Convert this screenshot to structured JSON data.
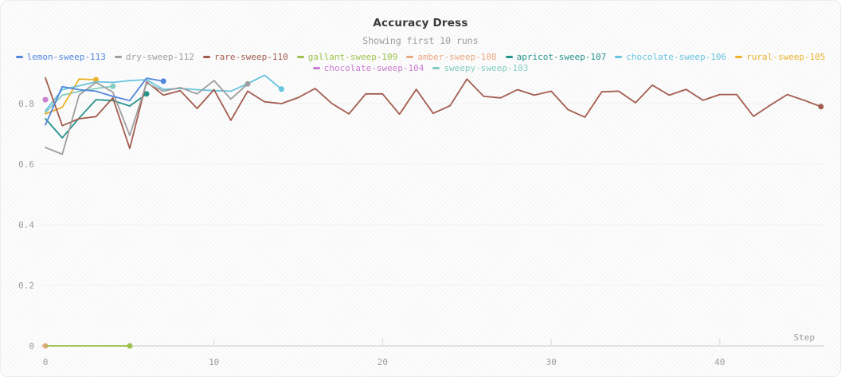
{
  "header": {
    "title": "Accuracy Dress",
    "subtitle": "Showing first 10 runs"
  },
  "axes": {
    "x_title": "Step",
    "x_ticks": [
      {
        "label": "0",
        "value": 0
      },
      {
        "label": "10",
        "value": 10
      },
      {
        "label": "20",
        "value": 20
      },
      {
        "label": "30",
        "value": 30
      },
      {
        "label": "40",
        "value": 40
      }
    ],
    "y_ticks": [
      {
        "label": "0",
        "value": 0
      },
      {
        "label": "0.2",
        "value": 0.2
      },
      {
        "label": "0.4",
        "value": 0.4
      },
      {
        "label": "0.6",
        "value": 0.6
      },
      {
        "label": "0.8",
        "value": 0.8
      }
    ]
  },
  "colors": {
    "axis_text": "#9c9c9c",
    "axis_line": "#e2e2e2",
    "grid_line": "#f1f1f1",
    "title_text": "#3a3a3a"
  },
  "chart_data": {
    "type": "line",
    "title": "Accuracy Dress",
    "subtitle": "Showing first 10 runs",
    "xlabel": "Step",
    "ylabel": "",
    "xlim": [
      0,
      47
    ],
    "ylim": [
      0,
      0.905
    ],
    "grid": "horizontal-faint",
    "legend_position": "top",
    "series": [
      {
        "name": "lemon-sweep-113",
        "color": "#5387DD",
        "points": [
          [
            0,
            0.73
          ],
          [
            1,
            0.856
          ],
          [
            2,
            0.846
          ],
          [
            3,
            0.841
          ],
          [
            4,
            0.824
          ],
          [
            5,
            0.81
          ],
          [
            6,
            0.884
          ],
          [
            7,
            0.874
          ]
        ]
      },
      {
        "name": "dry-sweep-112",
        "color": "#9E9E9E",
        "points": [
          [
            0,
            0.655
          ],
          [
            1,
            0.633
          ],
          [
            2,
            0.828
          ],
          [
            3,
            0.87
          ],
          [
            4,
            0.838
          ],
          [
            5,
            0.695
          ],
          [
            6,
            0.868
          ],
          [
            7,
            0.841
          ],
          [
            8,
            0.853
          ],
          [
            9,
            0.832
          ],
          [
            10,
            0.876
          ],
          [
            11,
            0.815
          ],
          [
            12,
            0.865
          ]
        ]
      },
      {
        "name": "rare-sweep-110",
        "color": "#A35C4E",
        "points": [
          [
            0,
            0.885
          ],
          [
            1,
            0.727
          ],
          [
            2,
            0.75
          ],
          [
            3,
            0.757
          ],
          [
            4,
            0.819
          ],
          [
            5,
            0.652
          ],
          [
            6,
            0.872
          ],
          [
            7,
            0.828
          ],
          [
            8,
            0.843
          ],
          [
            9,
            0.784
          ],
          [
            10,
            0.846
          ],
          [
            11,
            0.745
          ],
          [
            12,
            0.841
          ],
          [
            13,
            0.806
          ],
          [
            14,
            0.8
          ],
          [
            15,
            0.82
          ],
          [
            16,
            0.85
          ],
          [
            17,
            0.8
          ],
          [
            18,
            0.766
          ],
          [
            19,
            0.832
          ],
          [
            20,
            0.832
          ],
          [
            21,
            0.765
          ],
          [
            22,
            0.847
          ],
          [
            23,
            0.768
          ],
          [
            24,
            0.793
          ],
          [
            25,
            0.881
          ],
          [
            26,
            0.824
          ],
          [
            27,
            0.819
          ],
          [
            28,
            0.846
          ],
          [
            29,
            0.828
          ],
          [
            30,
            0.841
          ],
          [
            31,
            0.78
          ],
          [
            32,
            0.755
          ],
          [
            33,
            0.839
          ],
          [
            34,
            0.841
          ],
          [
            35,
            0.803
          ],
          [
            36,
            0.861
          ],
          [
            37,
            0.828
          ],
          [
            38,
            0.847
          ],
          [
            39,
            0.811
          ],
          [
            40,
            0.83
          ],
          [
            41,
            0.83
          ],
          [
            42,
            0.758
          ],
          [
            43,
            0.795
          ],
          [
            44,
            0.83
          ],
          [
            45,
            0.811
          ],
          [
            46,
            0.79
          ]
        ]
      },
      {
        "name": "gallant-sweep-109",
        "color": "#9DC24B",
        "points": [
          [
            0,
            0
          ],
          [
            1,
            0
          ],
          [
            2,
            0
          ],
          [
            3,
            0
          ],
          [
            4,
            0
          ],
          [
            5,
            0
          ]
        ]
      },
      {
        "name": "amber-sweep-108",
        "color": "#EBA782",
        "points": [
          [
            0,
            0
          ]
        ]
      },
      {
        "name": "apricot-sweep-107",
        "color": "#25938A",
        "points": [
          [
            0,
            0.75
          ],
          [
            1,
            0.687
          ],
          [
            2,
            0.752
          ],
          [
            3,
            0.813
          ],
          [
            4,
            0.81
          ],
          [
            5,
            0.792
          ],
          [
            6,
            0.832
          ]
        ]
      },
      {
        "name": "chocolate-sweep-106",
        "color": "#68C3DF",
        "points": [
          [
            0,
            0.776
          ],
          [
            1,
            0.846
          ],
          [
            2,
            0.859
          ],
          [
            3,
            0.872
          ],
          [
            4,
            0.87
          ],
          [
            5,
            0.876
          ],
          [
            6,
            0.879
          ],
          [
            7,
            0.847
          ],
          [
            8,
            0.85
          ],
          [
            9,
            0.846
          ],
          [
            10,
            0.843
          ],
          [
            11,
            0.841
          ],
          [
            12,
            0.866
          ],
          [
            13,
            0.894
          ],
          [
            14,
            0.848
          ]
        ]
      },
      {
        "name": "rural-sweep-105",
        "color": "#ECB32C",
        "points": [
          [
            0,
            0.766
          ],
          [
            1,
            0.788
          ],
          [
            2,
            0.881
          ],
          [
            3,
            0.879
          ]
        ]
      },
      {
        "name": "chocolate-sweep-104",
        "color": "#CA7FD0",
        "points": [
          [
            0,
            0.813
          ]
        ]
      },
      {
        "name": "sweepy-sweep-103",
        "color": "#85CDBE",
        "points": [
          [
            0,
            0.77
          ],
          [
            1,
            0.828
          ],
          [
            2,
            0.84
          ],
          [
            3,
            0.85
          ],
          [
            4,
            0.857
          ]
        ]
      }
    ]
  }
}
